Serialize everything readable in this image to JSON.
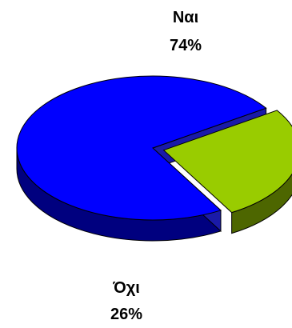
{
  "chart_data": {
    "type": "pie",
    "style": "3d-exploded",
    "slices": [
      {
        "label": "Ναι",
        "value": 74,
        "value_label": "74%",
        "color": "#0000FF",
        "side_color": "#00007F"
      },
      {
        "label": "Όχι",
        "value": 26,
        "value_label": "26%",
        "color": "#99CC00",
        "side_color": "#4D6600"
      }
    ],
    "title": "",
    "legend": "none"
  }
}
